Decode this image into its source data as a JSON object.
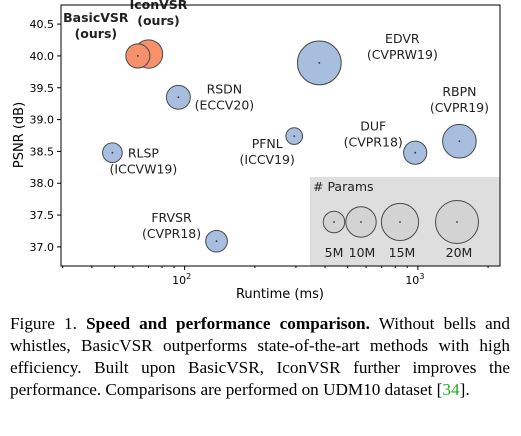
{
  "chart_data": {
    "type": "scatter",
    "xlabel": "Runtime (ms)",
    "ylabel": "PSNR (dB)",
    "xscale": "log",
    "xlim": [
      29.5,
      2250
    ],
    "ylim": [
      36.7,
      40.8
    ],
    "x_ticks": [
      {
        "value": 100,
        "base": "10",
        "exp": "2"
      },
      {
        "value": 1000,
        "base": "10",
        "exp": "3"
      }
    ],
    "y_ticks": [
      "37.0",
      "37.5",
      "38.0",
      "38.5",
      "39.0",
      "39.5",
      "40.0",
      "40.5"
    ],
    "grid": false,
    "points": [
      {
        "name": "BasicVSR",
        "label": [
          "BasicVSR",
          "(ours)"
        ],
        "x": 63,
        "y": 40.0,
        "params_m": 6.3,
        "color": "#f5916b",
        "label_bold": true
      },
      {
        "name": "IconVSR",
        "label": [
          "IconVSR",
          "(ours)"
        ],
        "x": 70,
        "y": 40.03,
        "params_m": 8.7,
        "color": "#f5916b",
        "label_bold": true
      },
      {
        "name": "EDVR",
        "label": [
          "EDVR",
          "(CVPRW19)"
        ],
        "x": 378,
        "y": 39.89,
        "params_m": 20.7,
        "color": "#a7bedf"
      },
      {
        "name": "RSDN",
        "label": [
          "RSDN",
          "(ECCV20)"
        ],
        "x": 94,
        "y": 39.35,
        "params_m": 6.2,
        "color": "#a7bedf"
      },
      {
        "name": "RBPN",
        "label": [
          "RBPN",
          "(CVPR19)"
        ],
        "x": 1507,
        "y": 38.66,
        "params_m": 12.2,
        "color": "#a7bedf"
      },
      {
        "name": "DUF",
        "label": [
          "DUF",
          "(CVPR18)"
        ],
        "x": 974,
        "y": 38.48,
        "params_m": 5.8,
        "color": "#a7bedf"
      },
      {
        "name": "PFNL",
        "label": [
          "PFNL",
          "(ICCV19)"
        ],
        "x": 295,
        "y": 38.74,
        "params_m": 3.0,
        "color": "#a7bedf"
      },
      {
        "name": "RLSP",
        "label": [
          "RLSP",
          "(ICCVW19)"
        ],
        "x": 49,
        "y": 38.48,
        "params_m": 4.2,
        "color": "#a7bedf"
      },
      {
        "name": "FRVSR",
        "label": [
          "FRVSR",
          "(CVPR18)"
        ],
        "x": 137,
        "y": 37.09,
        "params_m": 5.1,
        "color": "#a7bedf"
      }
    ],
    "size_legend": {
      "title": "# Params",
      "items": [
        {
          "label": "5M",
          "params_m": 5
        },
        {
          "label": "10M",
          "params_m": 10
        },
        {
          "label": "15M",
          "params_m": 15
        },
        {
          "label": "20M",
          "params_m": 20
        }
      ]
    }
  },
  "caption": {
    "prefix": "Figure 1. ",
    "bold": "Speed and performance comparison.",
    "body": " Without bells and whistles, BasicVSR outperforms state-of-the-art methods with high efficiency. Built upon BasicVSR, IconVSR further improves the performance. Comparisons are performed on UDM10 dataset [",
    "ref": "34",
    "end": "]."
  }
}
